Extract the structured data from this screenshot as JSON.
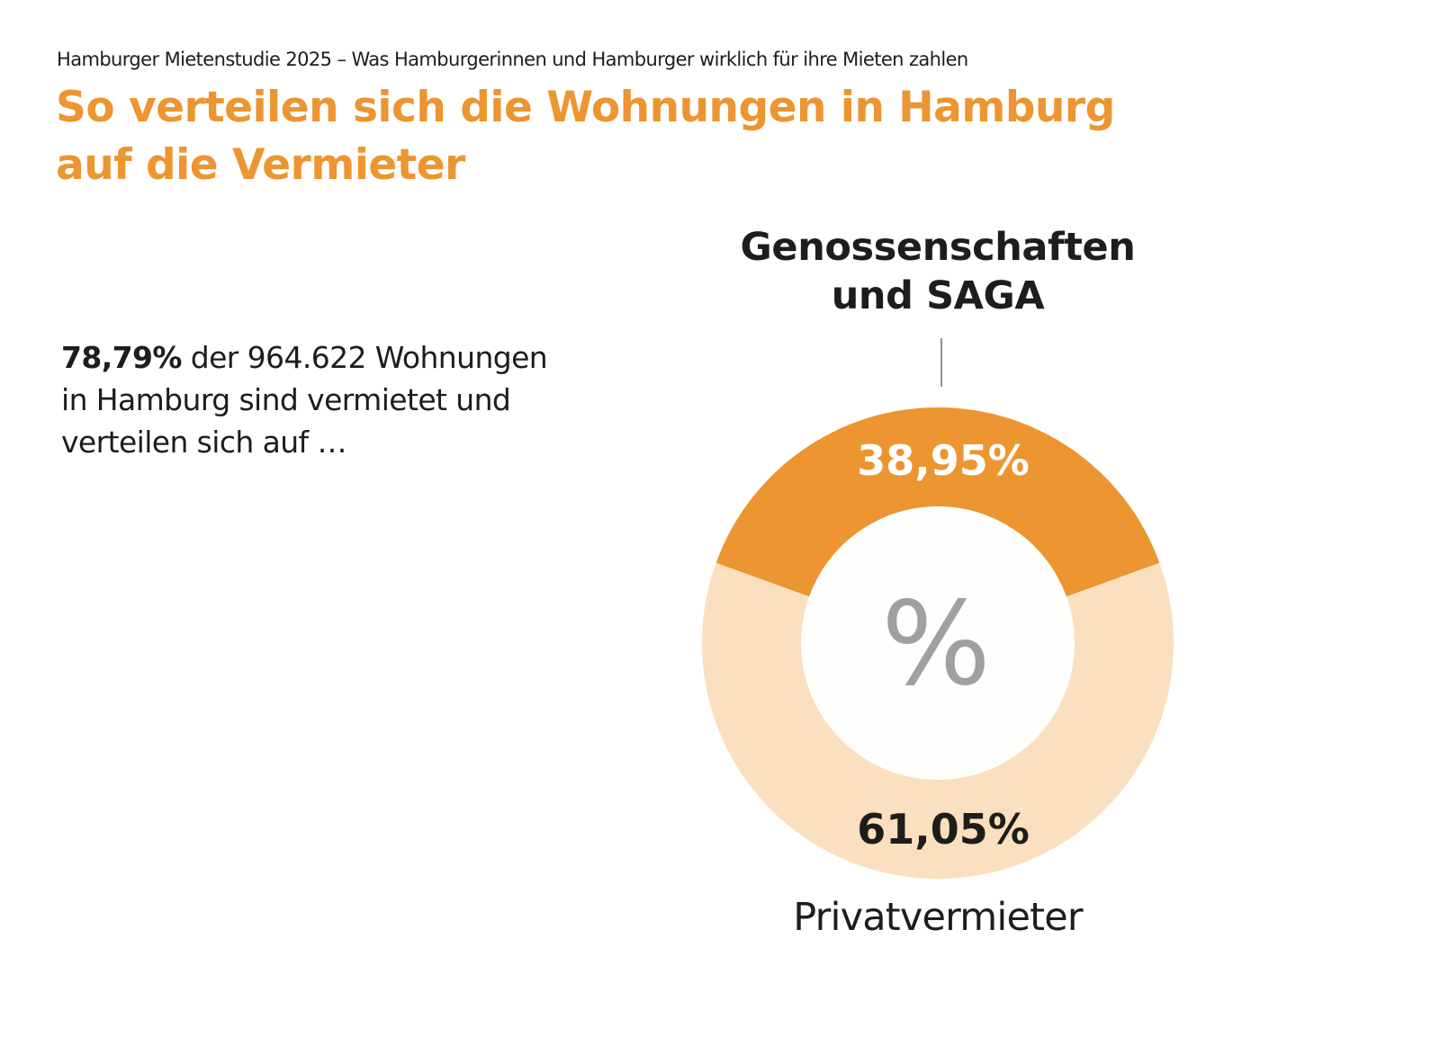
{
  "header": {
    "kicker": "Hamburger Mietenstudie 2025 – Was Hamburgerinnen und Hamburger wirklich für ihre Mieten zahlen",
    "title_line1": "So verteilen sich die Wohnungen in Hamburg",
    "title_line2": "auf die Vermieter"
  },
  "intro": {
    "highlight": "78,79%",
    "line1_rest": " der 964.622 Wohnungen",
    "line2": "in Hamburg sind vermietet und",
    "line3": "verteilen sich auf …"
  },
  "chart_data": {
    "type": "pie",
    "variant": "donut",
    "center_label": "%",
    "categories": [
      "Genossenschaften und SAGA",
      "Privatvermieter"
    ],
    "values": [
      38.95,
      61.05
    ],
    "value_labels": [
      "38,95%",
      "61,05%"
    ],
    "label_lines": [
      [
        "Genossenschaften",
        "und SAGA"
      ],
      [
        "Privatvermieter"
      ]
    ],
    "colors": [
      "#ec9531",
      "#fae0be"
    ],
    "label_colors": [
      "#ffffff",
      "#1d1d1b"
    ]
  }
}
